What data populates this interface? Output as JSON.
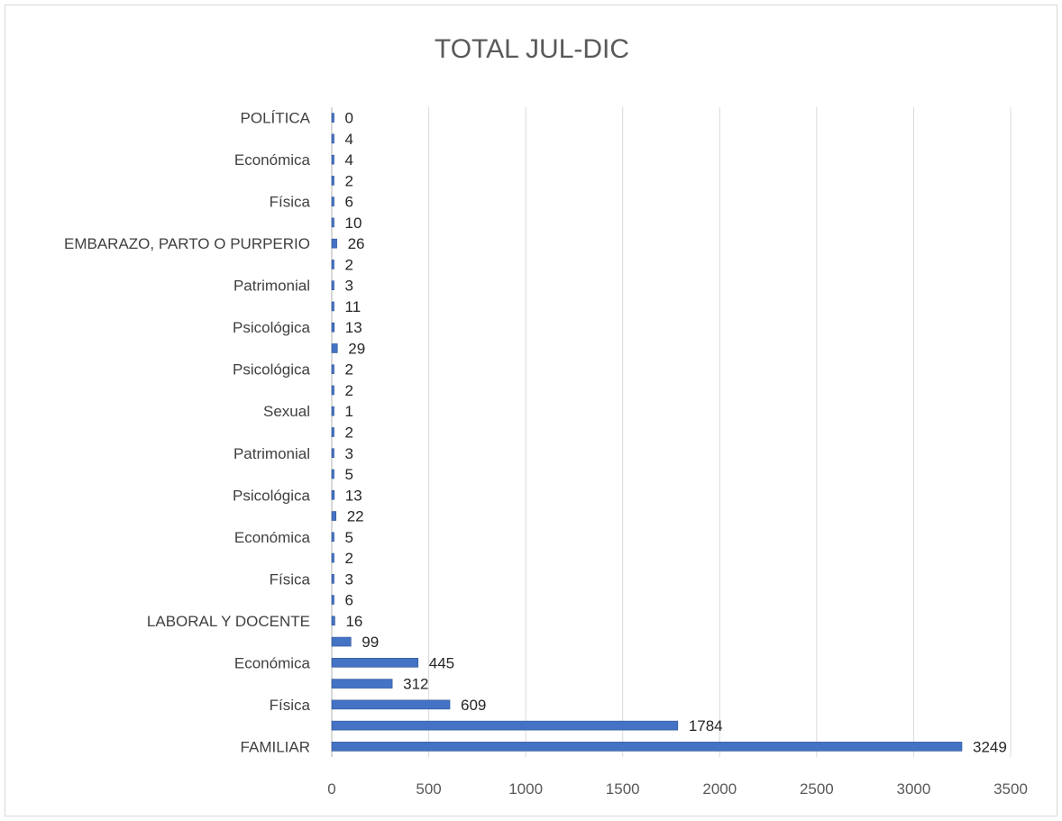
{
  "chart_data": {
    "type": "bar",
    "orientation": "horizontal",
    "title": "TOTAL JUL-DIC",
    "xlabel": "",
    "ylabel": "",
    "xlim": [
      0,
      3500
    ],
    "x_ticks": [
      0,
      500,
      1000,
      1500,
      2000,
      2500,
      3000,
      3500
    ],
    "grid": "vertical",
    "legend": "none",
    "bar_color": "#4472c4",
    "categories": [
      "FAMILIAR",
      "",
      "Física",
      "",
      "Económica",
      "",
      "LABORAL Y DOCENTE",
      "",
      "Física",
      "",
      "Económica",
      "",
      "Psicológica",
      "",
      "Patrimonial",
      "",
      "Sexual",
      "",
      "Psicológica",
      "",
      "Psicológica",
      "",
      "Patrimonial",
      "",
      "EMBARAZO, PARTO O PURPERIO",
      "",
      "Física",
      "",
      "Económica",
      "",
      "POLÍTICA"
    ],
    "values": [
      3249,
      1784,
      609,
      312,
      445,
      99,
      16,
      6,
      3,
      2,
      5,
      22,
      13,
      5,
      3,
      2,
      1,
      2,
      2,
      29,
      13,
      11,
      3,
      2,
      26,
      10,
      6,
      2,
      4,
      4,
      0
    ]
  }
}
